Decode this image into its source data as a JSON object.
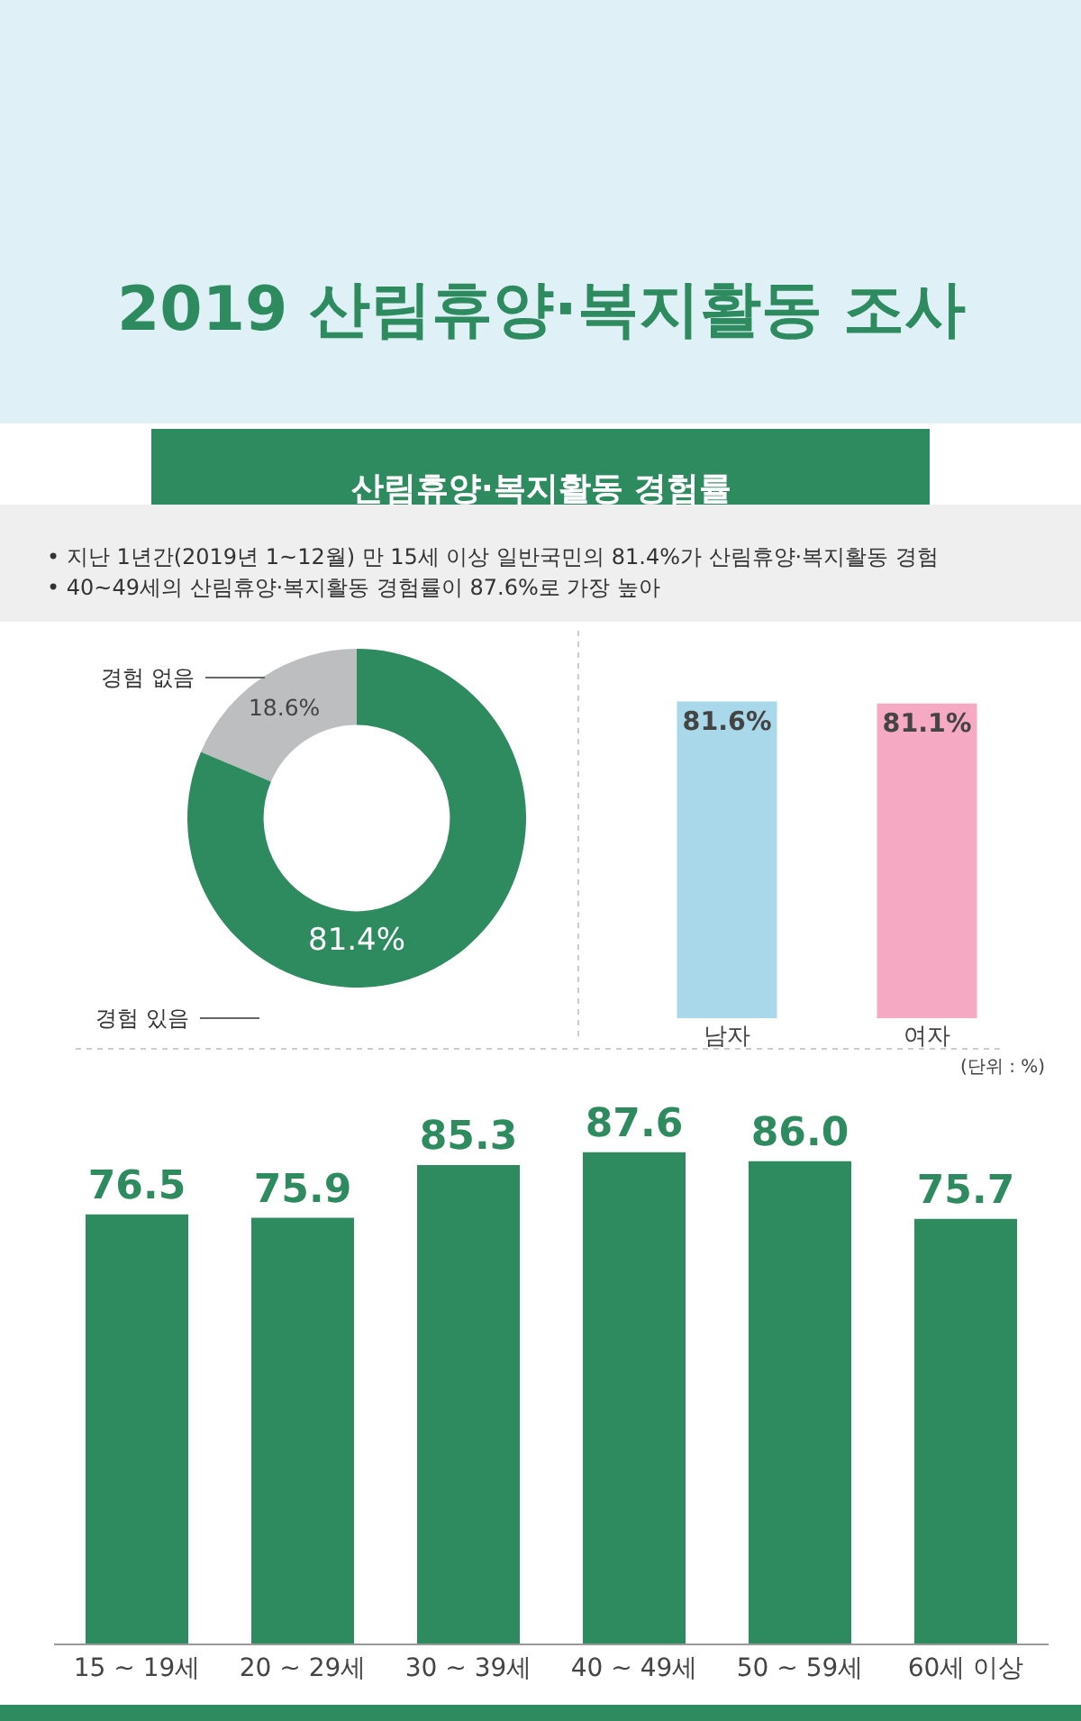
{
  "chart_data": [
    {
      "type": "donut",
      "title": "2019 산림휴양·복지활동 조사",
      "subtitle": "산림휴양·복지활동 경험률",
      "annotations": [
        "• 지난 1년간(2019년 1~12월) 만 15세 이상 일반국민의 81.4%가 산림휴양·복지활동 경험",
        "• 40~49세의 산림휴양·복지활동 경험률이 87.6%로 가장 높아"
      ],
      "categories": [
        "경험 없음",
        "경험 있음"
      ],
      "values": [
        18.6,
        81.4
      ],
      "colors": [
        "#bdbec0",
        "#2e8b5f"
      ],
      "value_labels": [
        "18.6%",
        "81.4%"
      ]
    },
    {
      "type": "bar",
      "categories": [
        "남자",
        "여자"
      ],
      "values": [
        81.6,
        81.1
      ],
      "colors": [
        "#a8d8ea",
        "#f6a9c3"
      ],
      "value_labels": [
        "81.6%",
        "81.1%"
      ],
      "tick_labels": "x"
    },
    {
      "type": "bar",
      "categories": [
        "15 ~ 19세",
        "20 ~ 29세",
        "30 ~ 39세",
        "40 ~ 49세",
        "50 ~ 59세",
        "60세 이상"
      ],
      "values": [
        76.5,
        75.9,
        85.3,
        87.6,
        86.0,
        75.7
      ],
      "color": "#2e8b5f",
      "value_labels": [
        "76.5",
        "75.9",
        "85.3",
        "87.6",
        "86.0",
        "75.7"
      ],
      "tick_labels": "x",
      "annotations": [
        "(단위 : %)"
      ]
    }
  ]
}
